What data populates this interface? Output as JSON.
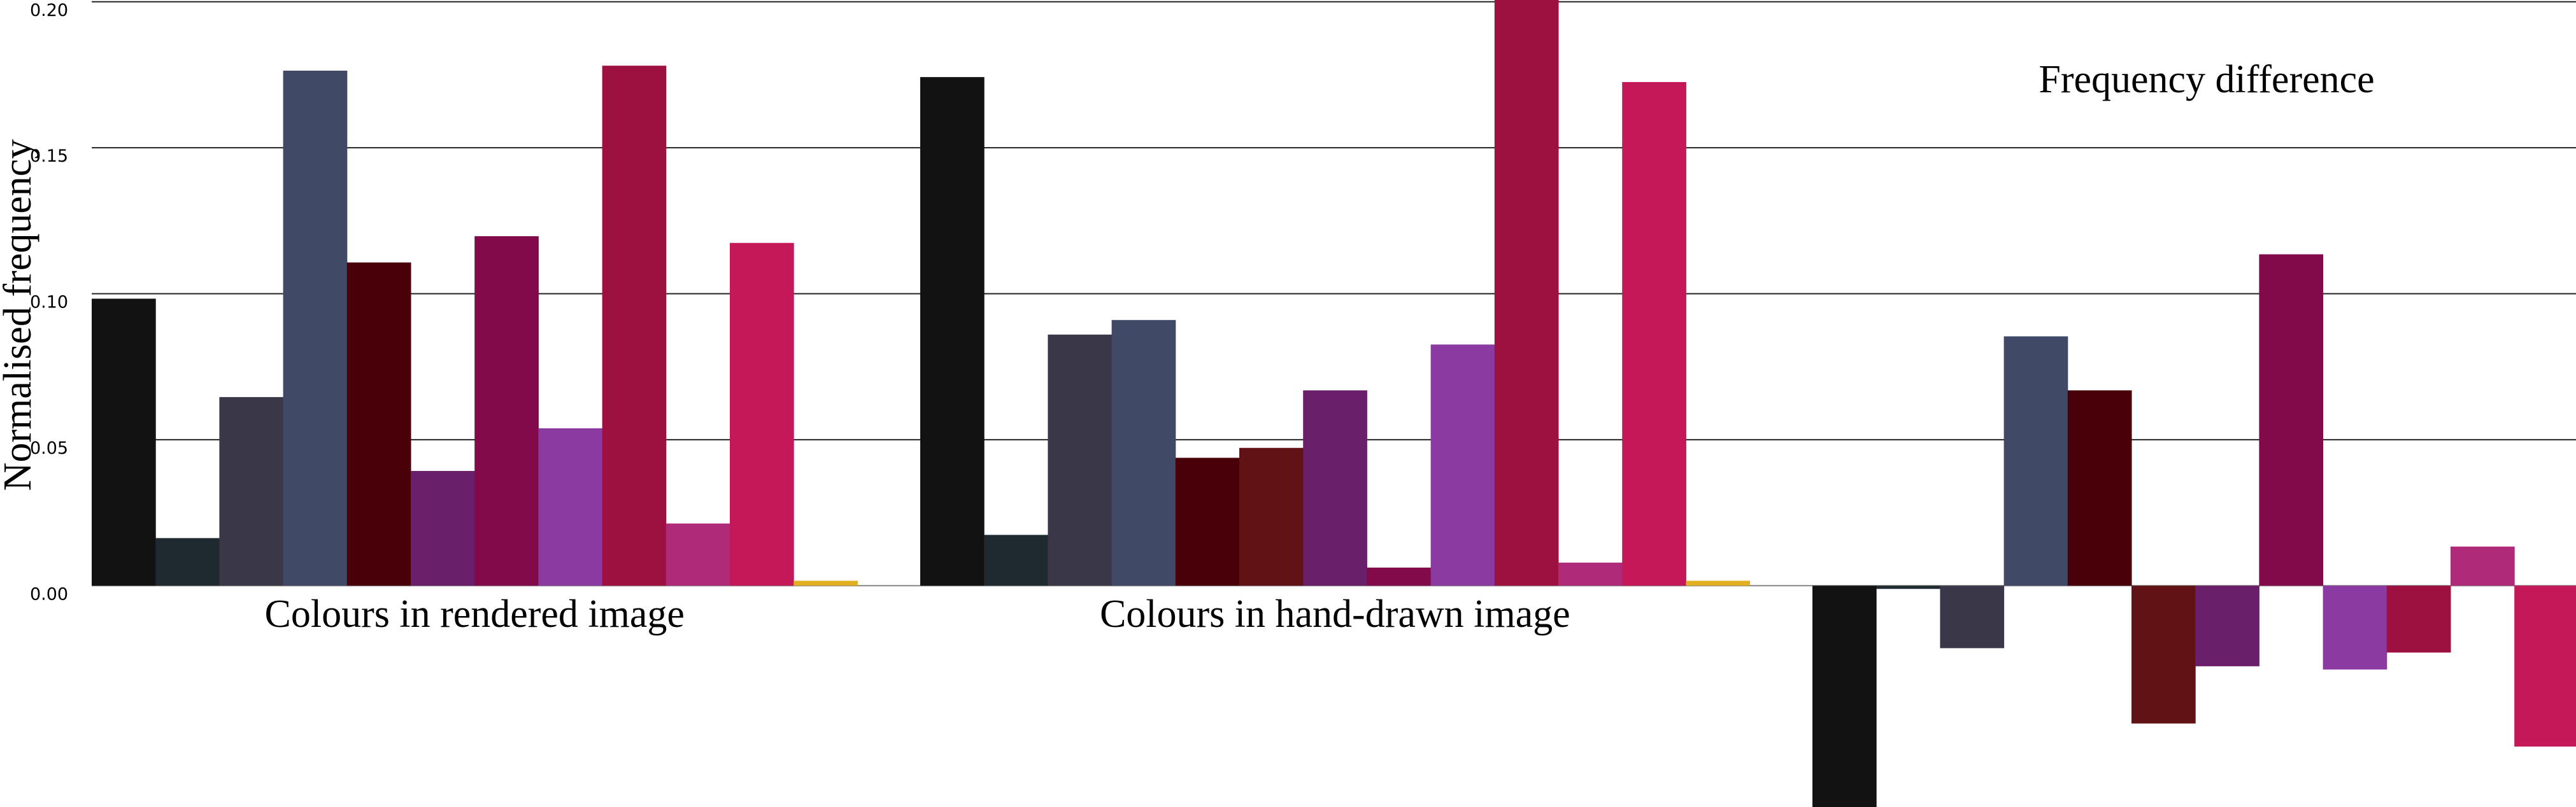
{
  "chart_data": {
    "type": "bar",
    "y_label": "Normalised frequency",
    "title": "Frequency difference",
    "categories": [
      null,
      null,
      null,
      null,
      null,
      null,
      null,
      null,
      null,
      null,
      null,
      null,
      null
    ],
    "colors": [
      "#121212",
      "#1f2a30",
      "#3a3848",
      "#404a66",
      "#4a0008",
      "#601214",
      "#6a1f6a",
      "#820a4a",
      "#8a3aa0",
      "#9c1140",
      "#b02a7a",
      "#c41858",
      "#e0b020"
    ],
    "series": [
      {
        "name": "Colours in rendered image",
        "values": [
          0.0983,
          0.0163,
          0.0646,
          0.1764,
          0.1107,
          null,
          0.0393,
          0.1197,
          0.0539,
          0.1781,
          0.0213,
          0.1174,
          0.0017
        ]
      },
      {
        "name": "Colours in hand-drawn image",
        "values": [
          0.1742,
          0.0174,
          0.086,
          0.091,
          0.0438,
          0.0472,
          0.0669,
          0.0062,
          0.0826,
          0.201,
          0.0079,
          0.1725,
          0.0017
        ]
      },
      {
        "values": [
          -0.0759,
          -0.0011,
          -0.0214,
          0.0854,
          0.0669,
          -0.0472,
          -0.0276,
          0.1135,
          -0.0287,
          -0.0229,
          0.0134,
          -0.0551,
          null
        ]
      }
    ],
    "ylim": [
      -0.0758,
      0.2006
    ],
    "yticks": [
      {
        "value": 0,
        "label": "0.00"
      },
      {
        "value": 0.05,
        "label": "0.05"
      },
      {
        "value": 0.1,
        "label": "0.10"
      },
      {
        "value": 0.15,
        "label": "0.15"
      },
      {
        "value": 0.2,
        "label": "0.20"
      }
    ],
    "grid": true
  }
}
